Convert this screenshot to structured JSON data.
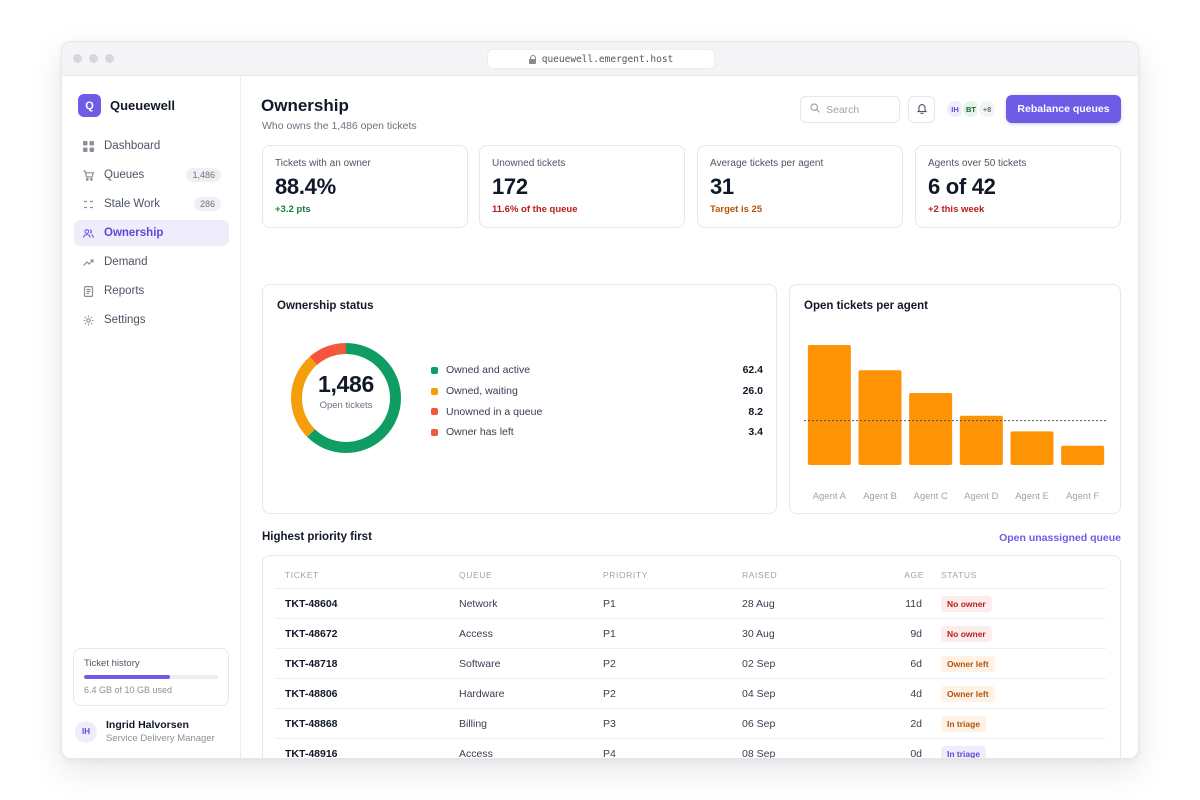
{
  "browser": {
    "url": "queuewell.emergent.host"
  },
  "brand": {
    "mark": "Q",
    "name": "Queuewell"
  },
  "sidebar": {
    "items": [
      {
        "label": "Dashboard",
        "badge": null,
        "icon": "grid-icon"
      },
      {
        "label": "Queues",
        "badge": "1,486",
        "icon": "cart-icon"
      },
      {
        "label": "Stale Work",
        "badge": "286",
        "icon": "stale-icon"
      },
      {
        "label": "Ownership",
        "badge": null,
        "icon": "people-icon",
        "active": true
      },
      {
        "label": "Demand",
        "badge": null,
        "icon": "trend-icon"
      },
      {
        "label": "Reports",
        "badge": null,
        "icon": "report-icon"
      },
      {
        "label": "Settings",
        "badge": null,
        "icon": "gear-icon"
      }
    ],
    "storage": {
      "title": "Ticket history",
      "used_fraction": 0.64,
      "text": "6.4 GB of 10 GB used"
    },
    "user": {
      "initials": "IH",
      "name": "Ingrid Halvorsen",
      "role": "Service Delivery Manager"
    }
  },
  "header": {
    "title": "Ownership",
    "subtitle": "Who owns the 1,486 open tickets",
    "search_placeholder": "Search",
    "avatars": [
      "IH",
      "BT",
      "+8"
    ],
    "primary_action": "Rebalance queues"
  },
  "kpis": [
    {
      "label": "Tickets with an owner",
      "value": "88.4%",
      "delta": "+3.2 pts",
      "tone": "green"
    },
    {
      "label": "Unowned tickets",
      "value": "172",
      "delta": "11.6% of the queue",
      "tone": "red"
    },
    {
      "label": "Average tickets per agent",
      "value": "31",
      "delta": "Target is 25",
      "tone": "orange"
    },
    {
      "label": "Agents over 50 tickets",
      "value": "6 of 42",
      "delta": "+2 this week",
      "tone": "red"
    }
  ],
  "ownership": {
    "title": "Ownership status",
    "center_value": "1,486",
    "center_caption": "Open tickets",
    "legend": [
      {
        "label": "Owned and active",
        "value": "62.4",
        "color": "#0f9d63"
      },
      {
        "label": "Owned, waiting",
        "value": "26.0",
        "color": "#f59e0b"
      },
      {
        "label": "Unowned in a queue",
        "value": "8.2",
        "color": "#f4553b"
      },
      {
        "label": "Owner has left",
        "value": "3.4",
        "color": "#ef5a3c"
      }
    ]
  },
  "chart_data": {
    "type": "bar",
    "title": "Open tickets per agent",
    "categories": [
      "Agent A",
      "Agent B",
      "Agent C",
      "Agent D",
      "Agent E",
      "Agent F"
    ],
    "values": [
      100,
      79,
      60,
      41,
      28,
      16
    ],
    "ylim": [
      0,
      100
    ],
    "reference_line": 37,
    "color": "#ff9306",
    "grid": false
  },
  "table": {
    "title": "Highest priority first",
    "link": "Open unassigned queue",
    "headers": [
      "TICKET",
      "QUEUE",
      "PRIORITY",
      "RAISED",
      "AGE",
      "STATUS"
    ],
    "rows": [
      {
        "ticket": "TKT-48604",
        "queue": "Network",
        "priority": "P1",
        "raised": "28 Aug",
        "age": "11d",
        "status": "No owner",
        "tone": "red"
      },
      {
        "ticket": "TKT-48672",
        "queue": "Access",
        "priority": "P1",
        "raised": "30 Aug",
        "age": "9d",
        "status": "No owner",
        "tone": "red"
      },
      {
        "ticket": "TKT-48718",
        "queue": "Software",
        "priority": "P2",
        "raised": "02 Sep",
        "age": "6d",
        "status": "Owner left",
        "tone": "orange"
      },
      {
        "ticket": "TKT-48806",
        "queue": "Hardware",
        "priority": "P2",
        "raised": "04 Sep",
        "age": "4d",
        "status": "Owner left",
        "tone": "orange"
      },
      {
        "ticket": "TKT-48868",
        "queue": "Billing",
        "priority": "P3",
        "raised": "06 Sep",
        "age": "2d",
        "status": "In triage",
        "tone": "orange"
      },
      {
        "ticket": "TKT-48916",
        "queue": "Access",
        "priority": "P4",
        "raised": "08 Sep",
        "age": "0d",
        "status": "In triage",
        "tone": "purple"
      }
    ]
  }
}
